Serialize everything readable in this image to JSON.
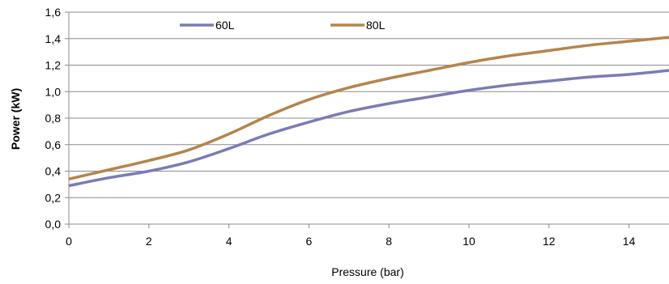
{
  "chart_data": {
    "type": "line",
    "xlabel": "Pressure (bar)",
    "ylabel": "Power (kW)",
    "xlim": [
      0,
      15
    ],
    "ylim": [
      0,
      1.6
    ],
    "x_ticks": [
      0,
      2,
      4,
      6,
      8,
      10,
      12,
      14
    ],
    "y_ticks": [
      0.0,
      0.2,
      0.4,
      0.6,
      0.8,
      1.0,
      1.2,
      1.4,
      1.6
    ],
    "x_tick_labels": [
      "0",
      "2",
      "4",
      "6",
      "8",
      "10",
      "12",
      "14"
    ],
    "y_tick_labels": [
      "0,0",
      "0,2",
      "0,4",
      "0,6",
      "0,8",
      "1,0",
      "1,2",
      "1,4",
      "1,6"
    ],
    "grid": "horizontal",
    "legend_position": "top",
    "series": [
      {
        "name": "60L",
        "color": "#7b7bb5",
        "x": [
          0,
          1,
          2,
          3,
          4,
          5,
          6,
          7,
          8,
          9,
          10,
          11,
          12,
          13,
          14,
          15
        ],
        "y": [
          0.29,
          0.35,
          0.4,
          0.47,
          0.57,
          0.68,
          0.77,
          0.85,
          0.91,
          0.96,
          1.01,
          1.05,
          1.08,
          1.11,
          1.13,
          1.16
        ]
      },
      {
        "name": "80L",
        "color": "#b5844c",
        "x": [
          0,
          1,
          2,
          3,
          4,
          5,
          6,
          7,
          8,
          9,
          10,
          11,
          12,
          13,
          14,
          15
        ],
        "y": [
          0.34,
          0.41,
          0.48,
          0.56,
          0.68,
          0.82,
          0.94,
          1.03,
          1.1,
          1.16,
          1.22,
          1.27,
          1.31,
          1.35,
          1.38,
          1.41
        ]
      }
    ]
  }
}
